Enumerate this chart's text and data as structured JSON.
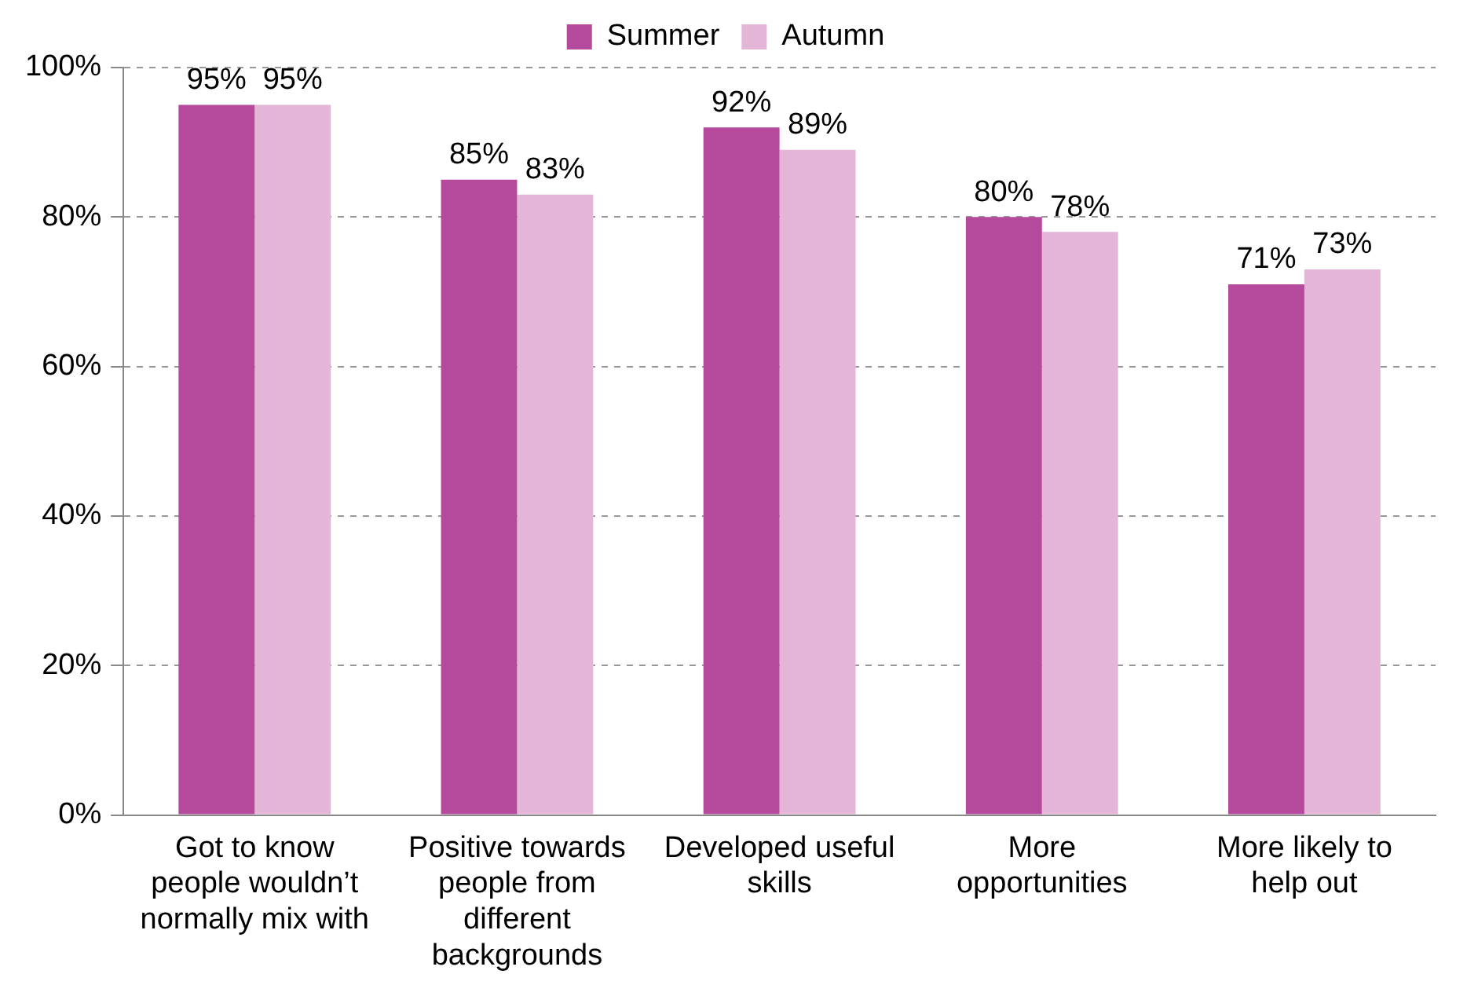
{
  "chart_data": {
    "type": "bar",
    "categories": [
      "Got to know people wouldn’t normally mix with",
      "Positive towards people from different backgrounds",
      "Developed useful skills",
      "More opportunities",
      "More likely to help out"
    ],
    "series": [
      {
        "name": "Summer",
        "color": "#b5499b",
        "values": [
          95,
          85,
          92,
          80,
          71
        ],
        "value_labels": [
          "95%",
          "85%",
          "92%",
          "80%",
          "71%"
        ]
      },
      {
        "name": "Autumn",
        "color": "#e3b5d7",
        "values": [
          95,
          83,
          89,
          78,
          73
        ],
        "value_labels": [
          "95%",
          "83%",
          "89%",
          "78%",
          "73%"
        ]
      }
    ],
    "ylim": [
      0,
      100
    ],
    "yticks": [
      {
        "value": 0,
        "label": "0%"
      },
      {
        "value": 20,
        "label": "20%"
      },
      {
        "value": 40,
        "label": "40%"
      },
      {
        "value": 60,
        "label": "60%"
      },
      {
        "value": 80,
        "label": "80%"
      },
      {
        "value": 100,
        "label": "100%"
      }
    ],
    "grid": "y",
    "legend": "top"
  }
}
